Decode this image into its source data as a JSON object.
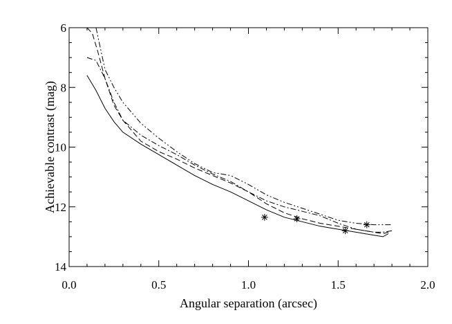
{
  "chart_data": {
    "type": "line",
    "title": "",
    "xlabel": "Angular separation (arcsec)",
    "ylabel": "Achievable contrast (mag)",
    "xlim": [
      0.0,
      2.0
    ],
    "ylim": [
      14,
      6
    ],
    "y_inverted": true,
    "x_ticks": [
      {
        "value": 0.0,
        "label": "0.0"
      },
      {
        "value": 0.5,
        "label": "0.5"
      },
      {
        "value": 1.0,
        "label": "1.0"
      },
      {
        "value": 1.5,
        "label": "1.5"
      },
      {
        "value": 2.0,
        "label": "2.0"
      }
    ],
    "y_ticks": [
      {
        "value": 6,
        "label": "6"
      },
      {
        "value": 8,
        "label": "8"
      },
      {
        "value": 10,
        "label": "10"
      },
      {
        "value": 12,
        "label": "12"
      },
      {
        "value": 14,
        "label": "14"
      }
    ],
    "grid": false,
    "series": [
      {
        "style": "solid",
        "x": [
          0.1,
          0.15,
          0.2,
          0.25,
          0.3,
          0.4,
          0.5,
          0.6,
          0.7,
          0.8,
          0.9,
          1.0,
          1.1,
          1.2,
          1.3,
          1.4,
          1.5,
          1.6,
          1.7,
          1.75,
          1.78
        ],
        "y": [
          7.6,
          8.1,
          8.7,
          9.15,
          9.5,
          9.9,
          10.25,
          10.6,
          10.95,
          11.25,
          11.5,
          11.8,
          12.1,
          12.35,
          12.5,
          12.65,
          12.75,
          12.85,
          12.95,
          13.0,
          12.9
        ]
      },
      {
        "style": "dashed",
        "x": [
          0.1,
          0.13,
          0.16,
          0.2,
          0.25,
          0.3,
          0.4,
          0.5,
          0.6,
          0.7,
          0.8,
          0.9,
          1.0,
          1.1,
          1.2,
          1.3,
          1.4,
          1.5,
          1.6,
          1.7,
          1.75,
          1.78
        ],
        "y": [
          6.0,
          6.2,
          6.8,
          7.7,
          8.6,
          9.1,
          9.8,
          10.15,
          10.4,
          10.7,
          10.95,
          11.2,
          11.5,
          11.9,
          12.2,
          12.4,
          12.55,
          12.65,
          12.75,
          12.85,
          12.9,
          12.85
        ]
      },
      {
        "style": "dash-dot",
        "x": [
          0.1,
          0.15,
          0.2,
          0.25,
          0.3,
          0.4,
          0.5,
          0.6,
          0.7,
          0.8,
          0.9,
          1.0,
          1.1,
          1.2,
          1.3,
          1.4,
          1.5,
          1.6,
          1.7,
          1.75,
          1.8
        ],
        "y": [
          7.0,
          7.1,
          7.7,
          8.5,
          9.1,
          9.6,
          9.95,
          10.25,
          10.6,
          10.9,
          11.15,
          11.5,
          11.8,
          12.0,
          12.15,
          12.3,
          12.55,
          12.75,
          12.85,
          12.85,
          12.8
        ]
      },
      {
        "style": "dash-dot-dot",
        "x": [
          0.15,
          0.2,
          0.25,
          0.3,
          0.4,
          0.5,
          0.6,
          0.7,
          0.8,
          0.9,
          1.0,
          1.1,
          1.2,
          1.3,
          1.4,
          1.5,
          1.6,
          1.7,
          1.8
        ],
        "y": [
          6.0,
          7.4,
          8.0,
          8.5,
          9.2,
          9.7,
          10.15,
          10.55,
          10.85,
          10.95,
          11.25,
          11.6,
          11.85,
          12.05,
          12.25,
          12.45,
          12.55,
          12.6,
          12.6
        ]
      }
    ],
    "markers": [
      {
        "symbol": "*",
        "x": 1.09,
        "y": 12.35
      },
      {
        "symbol": "*",
        "x": 1.27,
        "y": 12.4
      },
      {
        "symbol": "*",
        "x": 1.54,
        "y": 12.8
      },
      {
        "symbol": "*",
        "x": 1.66,
        "y": 12.6
      }
    ]
  }
}
